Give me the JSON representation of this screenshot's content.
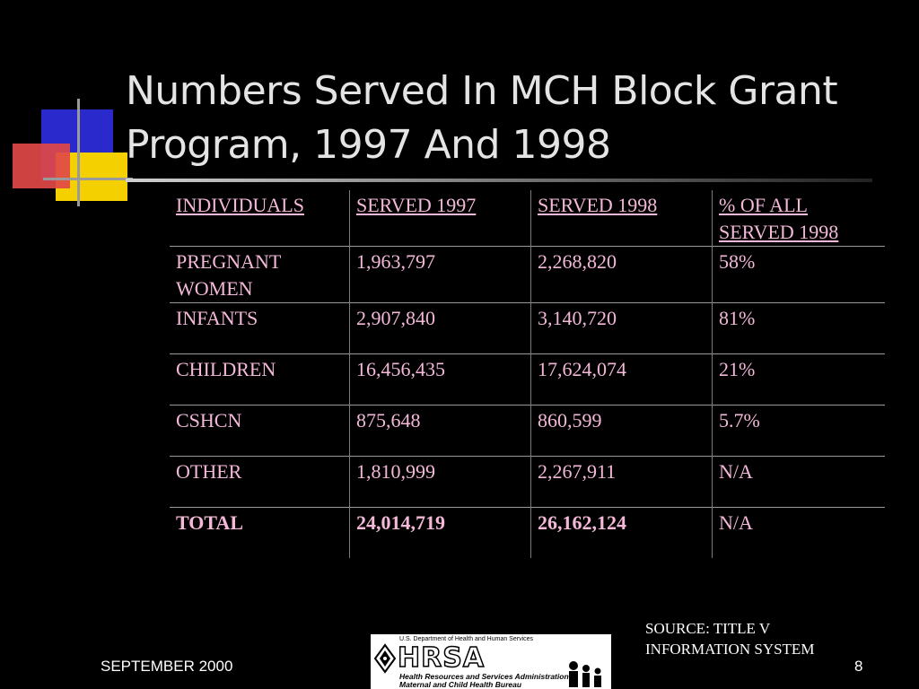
{
  "slide": {
    "title": "Numbers Served In MCH Block Grant Program, 1997 And 1998",
    "footer_date": "SEPTEMBER 2000",
    "page_number": "8",
    "source": "SOURCE: TITLE V INFORMATION SYSTEM"
  },
  "logo": {
    "department": "U.S. Department of Health and Human Services",
    "wordmark": "HRSA",
    "line1": "Health Resources and Services Administration",
    "line2": "Maternal and Child Health Bureau"
  },
  "table": {
    "headers": [
      "INDIVIDUALS",
      "SERVED 1997",
      "SERVED 1998",
      "% OF ALL SERVED 1998"
    ],
    "rows": [
      [
        "PREGNANT WOMEN",
        "1,963,797",
        "2,268,820",
        "58%"
      ],
      [
        "INFANTS",
        "2,907,840",
        "3,140,720",
        "81%"
      ],
      [
        "CHILDREN",
        "16,456,435",
        "17,624,074",
        "21%"
      ],
      [
        "CSHCN",
        "875,648",
        "860,599",
        "5.7%"
      ],
      [
        "OTHER",
        "1,810,999",
        "2,267,911",
        "N/A"
      ],
      [
        "TOTAL",
        "24,014,719",
        "26,162,124",
        "N/A"
      ]
    ]
  },
  "colors": {
    "background": "#000000",
    "table_text": "#f4b8d8",
    "deco_blue": "#2a2acc",
    "deco_red": "#e04848",
    "deco_yellow": "#f5d000"
  }
}
